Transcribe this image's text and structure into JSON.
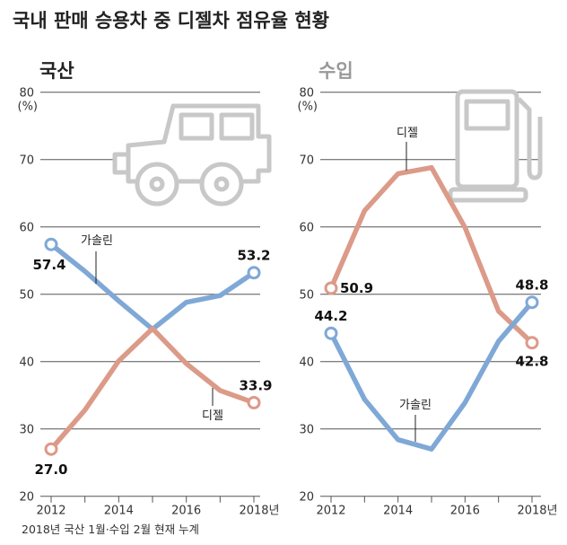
{
  "title": "국내 판매 승용차 중 디젤차 점유율 현황",
  "footnote": "2018년 국산 1월·수입 2월 현재 누계",
  "colors": {
    "gasoline": "#7fa8d6",
    "diesel": "#dc9a88",
    "grid": "#555555",
    "icon": "#c8c8c8"
  },
  "chart_data": [
    {
      "type": "line",
      "title": "국산",
      "icon": "car-icon",
      "x": [
        2012,
        2013,
        2014,
        2015,
        2016,
        2017,
        2018
      ],
      "xtick_labels": [
        "2012",
        "2014",
        "2016",
        "2018년"
      ],
      "ylim": [
        20,
        80
      ],
      "yticks": [
        20,
        30,
        40,
        50,
        60,
        70,
        80
      ],
      "yunit": "(%)",
      "grid": true,
      "series": [
        {
          "name": "가솔린",
          "key": "gasoline",
          "values": [
            57.4,
            53.4,
            49.0,
            44.8,
            48.8,
            49.8,
            53.2
          ],
          "start_label": "57.4",
          "end_label": "53.2"
        },
        {
          "name": "디젤",
          "key": "diesel",
          "values": [
            27.0,
            32.8,
            40.1,
            44.9,
            39.7,
            35.7,
            33.9
          ],
          "start_label": "27.0",
          "end_label": "33.9"
        }
      ]
    },
    {
      "type": "line",
      "title": "수입",
      "icon": "fuel-pump-icon",
      "x": [
        2012,
        2013,
        2014,
        2015,
        2016,
        2017,
        2018
      ],
      "xtick_labels": [
        "2012",
        "2014",
        "2016",
        "2018년"
      ],
      "ylim": [
        20,
        80
      ],
      "yticks": [
        20,
        30,
        40,
        50,
        60,
        70,
        80
      ],
      "yunit": "(%)",
      "grid": true,
      "series": [
        {
          "name": "디젤",
          "key": "diesel",
          "values": [
            50.9,
            62.4,
            67.9,
            68.8,
            59.9,
            47.5,
            42.8
          ],
          "start_label": "50.9",
          "end_label": "42.8"
        },
        {
          "name": "가솔린",
          "key": "gasoline",
          "values": [
            44.2,
            34.4,
            28.4,
            27.0,
            33.9,
            43.0,
            48.8
          ],
          "start_label": "44.2",
          "end_label": "48.8"
        }
      ]
    }
  ]
}
